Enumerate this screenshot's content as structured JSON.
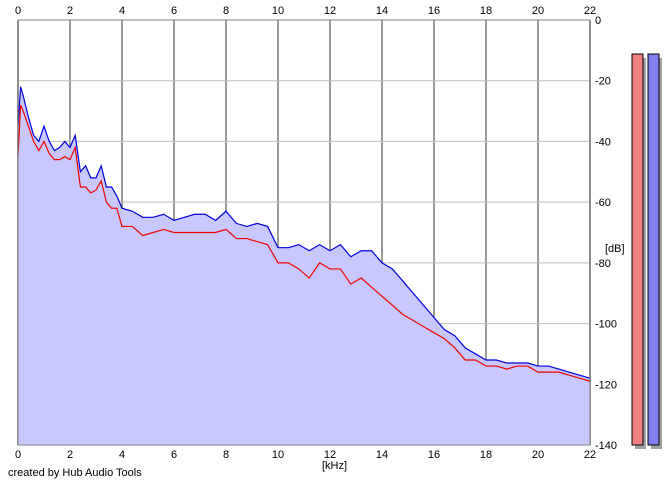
{
  "chart_data": {
    "type": "area",
    "title": "",
    "xlabel": "[kHz]",
    "ylabel": "[dB]",
    "xlim": [
      0,
      22
    ],
    "ylim": [
      -140,
      0
    ],
    "x_ticks": [
      "0",
      "2",
      "4",
      "6",
      "8",
      "10",
      "12",
      "14",
      "16",
      "18",
      "20",
      "22"
    ],
    "y_ticks": [
      "0",
      "-20",
      "-40",
      "-60",
      "-80",
      "-100",
      "-120",
      "-140"
    ],
    "grid": true,
    "series": [
      {
        "color": "#0000dd",
        "fill": "#c8c8ff",
        "x": [
          0,
          0.1,
          0.2,
          0.4,
          0.6,
          0.8,
          1.0,
          1.2,
          1.4,
          1.6,
          1.8,
          2.0,
          2.2,
          2.4,
          2.6,
          2.8,
          3.0,
          3.2,
          3.4,
          3.6,
          3.8,
          4.0,
          4.4,
          4.8,
          5.2,
          5.6,
          6.0,
          6.4,
          6.8,
          7.2,
          7.6,
          8.0,
          8.4,
          8.8,
          9.2,
          9.6,
          10.0,
          10.4,
          10.8,
          11.2,
          11.6,
          12.0,
          12.4,
          12.8,
          13.2,
          13.6,
          14.0,
          14.4,
          14.8,
          15.2,
          15.6,
          16.0,
          16.4,
          16.8,
          17.2,
          17.6,
          18.0,
          18.4,
          18.8,
          19.2,
          19.6,
          20.0,
          20.4,
          20.8,
          21.2,
          21.6,
          22.0
        ],
        "y": [
          -35,
          -22,
          -25,
          -32,
          -38,
          -40,
          -35,
          -40,
          -43,
          -42,
          -40,
          -42,
          -38,
          -50,
          -48,
          -52,
          -52,
          -48,
          -55,
          -55,
          -58,
          -62,
          -63,
          -65,
          -65,
          -64,
          -66,
          -65,
          -64,
          -64,
          -66,
          -63,
          -67,
          -68,
          -67,
          -68,
          -75,
          -75,
          -74,
          -76,
          -74,
          -76,
          -74,
          -78,
          -76,
          -76,
          -80,
          -82,
          -86,
          -90,
          -94,
          -98,
          -102,
          -104,
          -108,
          -110,
          -112,
          -112,
          -113,
          -113,
          -113,
          -114,
          -114,
          -115,
          -116,
          -117,
          -118
        ]
      },
      {
        "color": "#ee0000",
        "x": [
          0,
          0.1,
          0.2,
          0.4,
          0.6,
          0.8,
          1.0,
          1.2,
          1.4,
          1.6,
          1.8,
          2.0,
          2.2,
          2.4,
          2.6,
          2.8,
          3.0,
          3.2,
          3.4,
          3.6,
          3.8,
          4.0,
          4.4,
          4.8,
          5.2,
          5.6,
          6.0,
          6.4,
          6.8,
          7.2,
          7.6,
          8.0,
          8.4,
          8.8,
          9.2,
          9.6,
          10.0,
          10.4,
          10.8,
          11.2,
          11.6,
          12.0,
          12.4,
          12.8,
          13.2,
          13.6,
          14.0,
          14.4,
          14.8,
          15.2,
          15.6,
          16.0,
          16.4,
          16.8,
          17.2,
          17.6,
          18.0,
          18.4,
          18.8,
          19.2,
          19.6,
          20.0,
          20.4,
          20.8,
          21.2,
          21.6,
          22.0
        ],
        "y": [
          -45,
          -28,
          -30,
          -35,
          -40,
          -43,
          -40,
          -44,
          -46,
          -46,
          -45,
          -46,
          -42,
          -55,
          -55,
          -57,
          -56,
          -53,
          -60,
          -62,
          -62,
          -68,
          -68,
          -71,
          -70,
          -69,
          -70,
          -70,
          -70,
          -70,
          -70,
          -69,
          -72,
          -72,
          -73,
          -74,
          -80,
          -80,
          -82,
          -85,
          -80,
          -82,
          -82,
          -87,
          -85,
          -88,
          -91,
          -94,
          -97,
          -99,
          -101,
          -103,
          -105,
          -108,
          -112,
          -112,
          -114,
          -114,
          -115,
          -114,
          -114,
          -116,
          -116,
          -116,
          -117,
          -118,
          -119
        ]
      }
    ],
    "level_meters": [
      {
        "color": "#f08080",
        "level": 1.0
      },
      {
        "color": "#8080ee",
        "level": 1.0
      }
    ]
  },
  "footer": {
    "credit": "created by Hub Audio Tools"
  }
}
